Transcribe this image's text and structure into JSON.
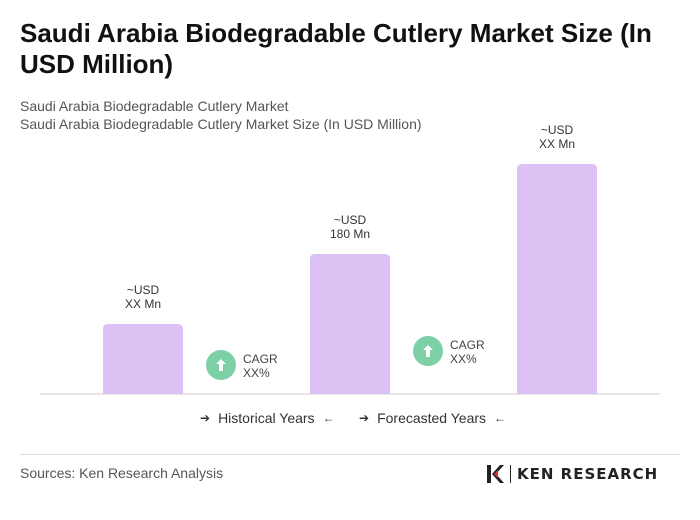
{
  "title": "Saudi Arabia Biodegradable Cutlery Market Size (In USD Million)",
  "subtitle_1": "Saudi Arabia Biodegradable Cutlery Market",
  "subtitle_2": "Saudi Arabia Biodegradable Cutlery Market Size (In USD Million)",
  "colors": {
    "bar": "#dcc1f5",
    "cagr_circle": "#7dcfa6",
    "axis": "#cccccc"
  },
  "chart_data": {
    "type": "bar",
    "categories": [
      "",
      "",
      ""
    ],
    "values": [
      70,
      140,
      230
    ],
    "value_note": "relative heights estimated from bar sizes",
    "bar_labels": [
      [
        "~USD",
        "XX Mn"
      ],
      [
        "~USD",
        "180 Mn"
      ],
      [
        "~USD",
        "XX Mn"
      ]
    ],
    "cagr_annotations": [
      {
        "label": "CAGR",
        "value": "XX%"
      },
      {
        "label": "CAGR",
        "value": "XX%"
      }
    ],
    "title": "",
    "xlabel": "",
    "ylabel": ""
  },
  "legend": {
    "historical": "Historical Years",
    "forecasted": "Forecasted Years"
  },
  "sources": "Sources: Ken Research Analysis",
  "logo_text": "KEN RESEARCH",
  "logo_icon": "ken-research-k-icon"
}
